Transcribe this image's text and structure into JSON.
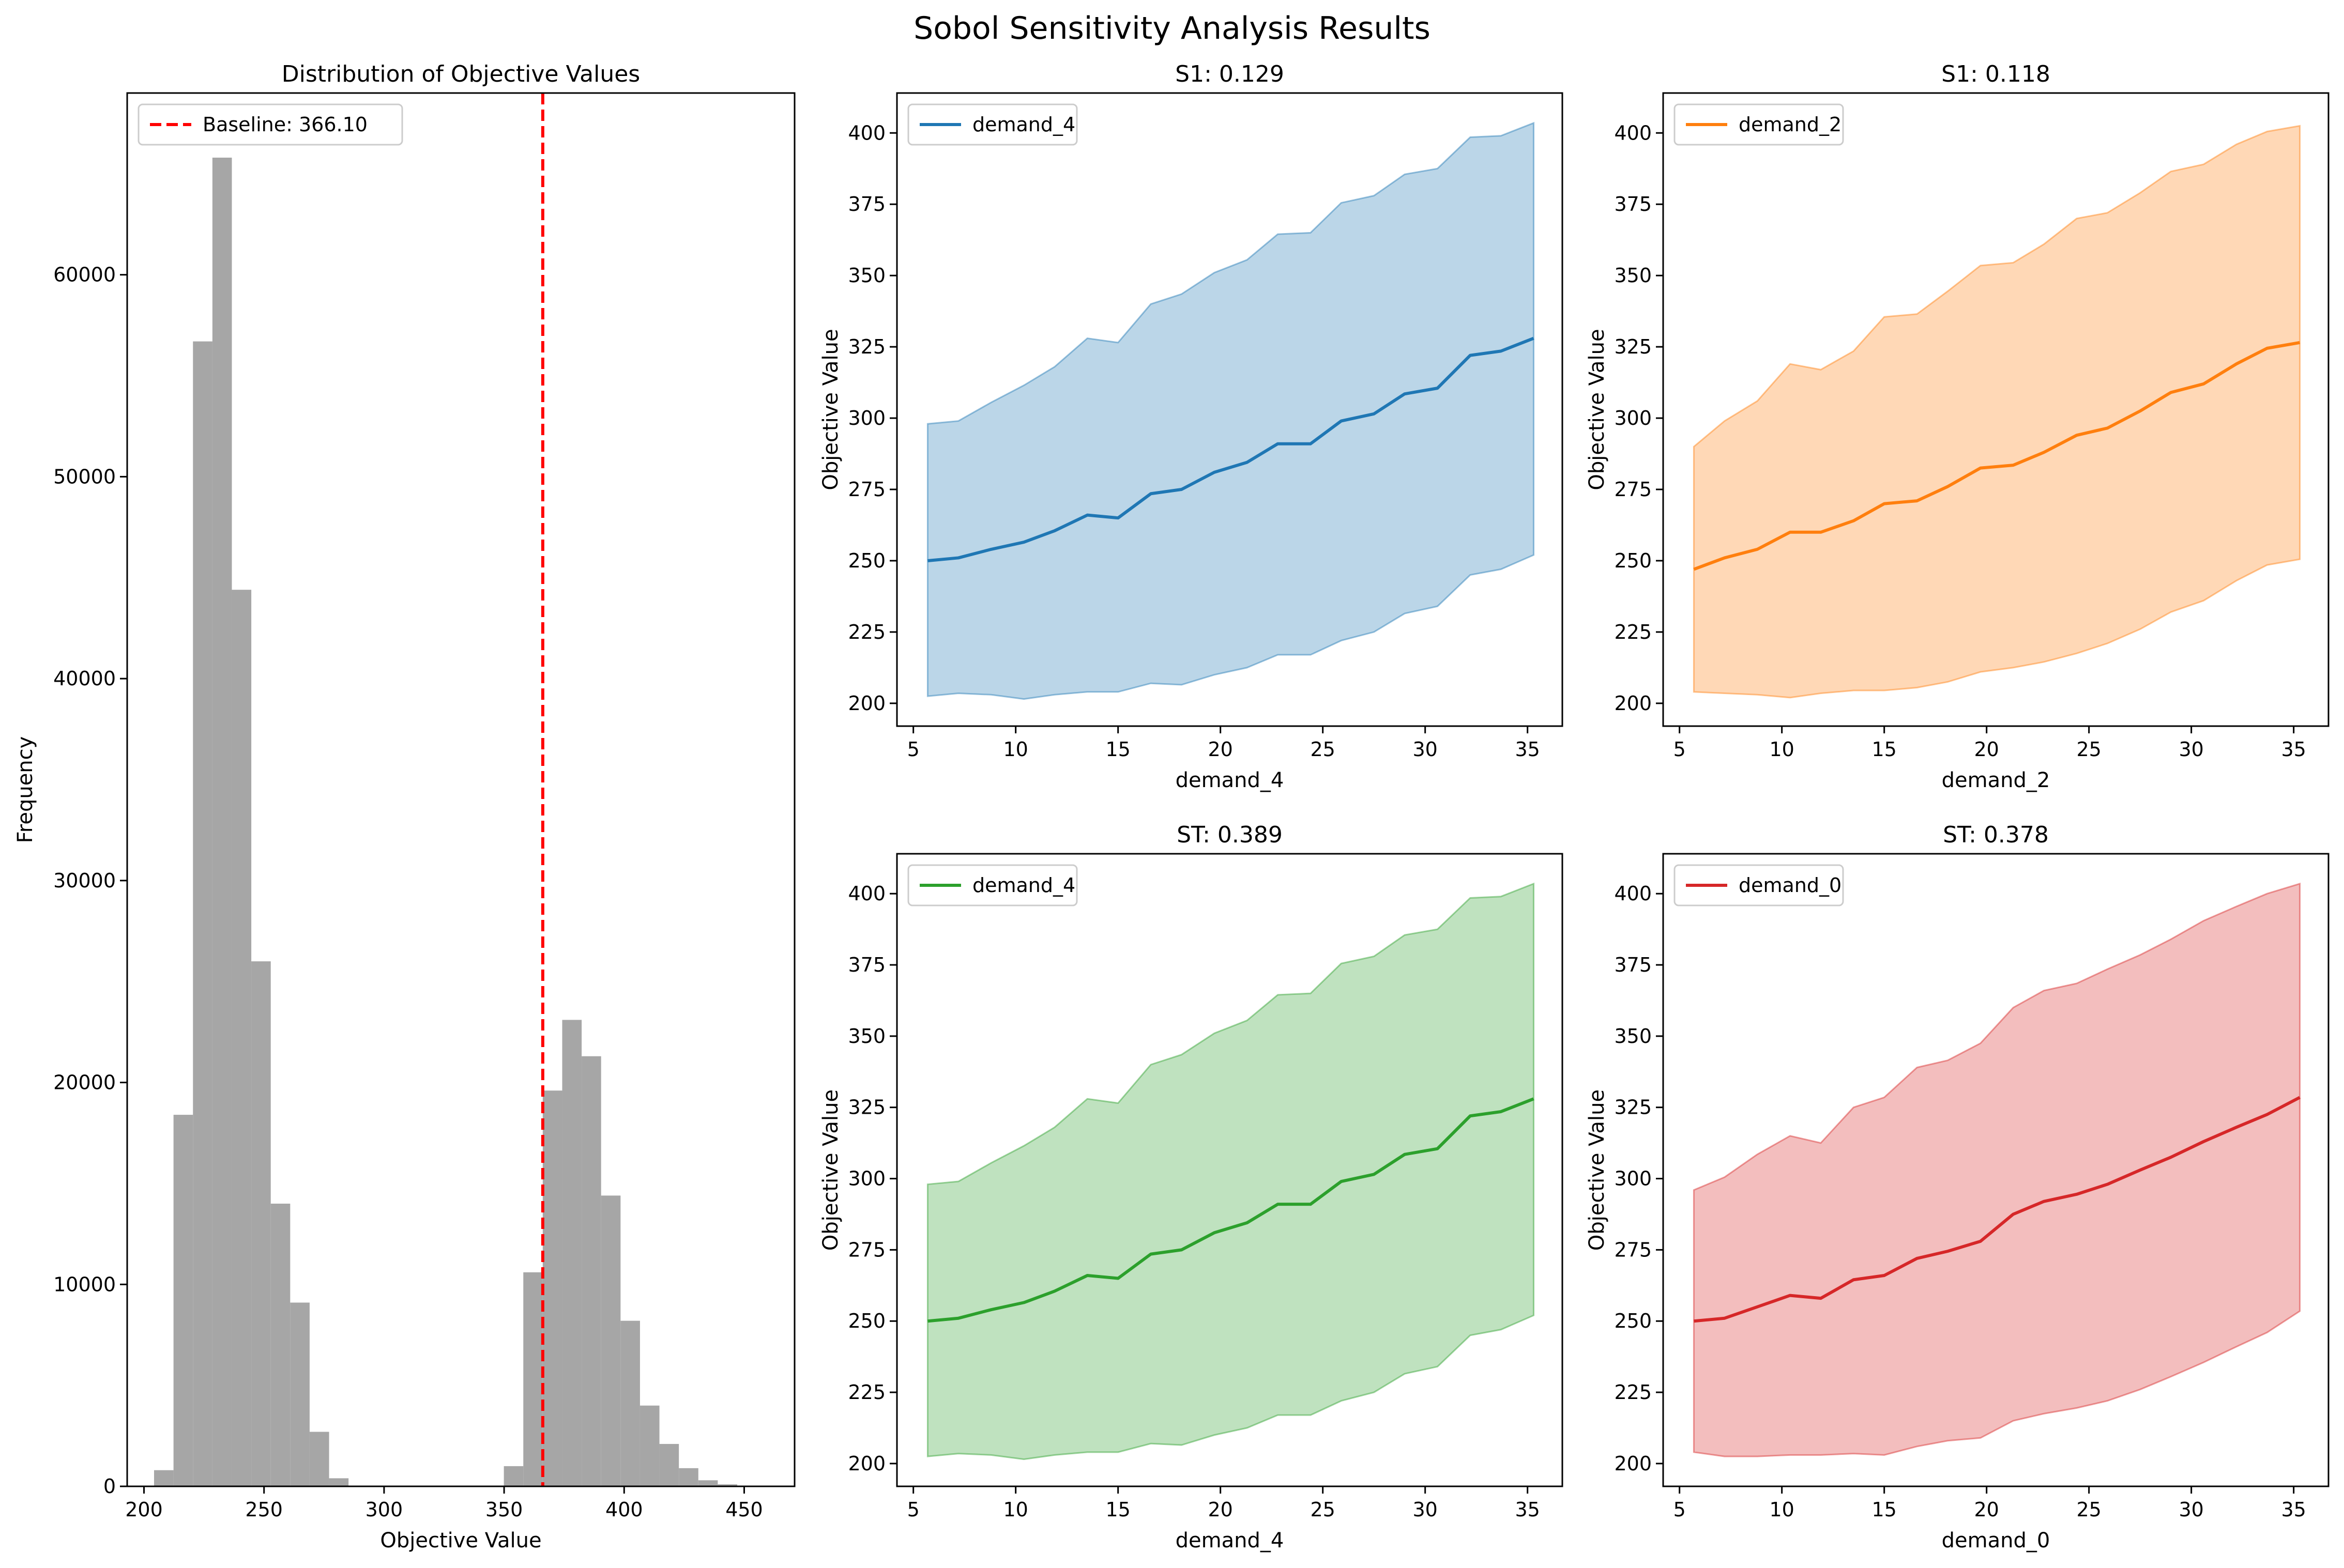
{
  "figure": {
    "title": "Sobol Sensitivity Analysis Results"
  },
  "chart_data": [
    {
      "id": "hist",
      "type": "bar",
      "subtype": "histogram",
      "title": "Distribution of Objective Values",
      "xlabel": "Objective Value",
      "ylabel": "Frequency",
      "xlim": [
        193,
        471
      ],
      "ylim": [
        0,
        69000
      ],
      "xticks": [
        200,
        250,
        300,
        350,
        400,
        450
      ],
      "yticks": [
        0,
        10000,
        20000,
        30000,
        40000,
        50000,
        60000
      ],
      "bin_width": 8.1,
      "bar_color": "#a6a6a6",
      "bins": [
        {
          "x0": 204.2,
          "count": 800
        },
        {
          "x0": 212.3,
          "count": 18400
        },
        {
          "x0": 220.4,
          "count": 56700
        },
        {
          "x0": 228.5,
          "count": 65800
        },
        {
          "x0": 236.6,
          "count": 44400
        },
        {
          "x0": 244.7,
          "count": 26000
        },
        {
          "x0": 252.8,
          "count": 14000
        },
        {
          "x0": 260.9,
          "count": 9100
        },
        {
          "x0": 269.0,
          "count": 2700
        },
        {
          "x0": 277.1,
          "count": 400
        },
        {
          "x0": 285.2,
          "count": 30
        },
        {
          "x0": 349.9,
          "count": 1000
        },
        {
          "x0": 358.0,
          "count": 10600
        },
        {
          "x0": 366.1,
          "count": 19600
        },
        {
          "x0": 374.2,
          "count": 23100
        },
        {
          "x0": 382.3,
          "count": 21300
        },
        {
          "x0": 390.4,
          "count": 14400
        },
        {
          "x0": 398.5,
          "count": 8200
        },
        {
          "x0": 406.6,
          "count": 4000
        },
        {
          "x0": 414.7,
          "count": 2100
        },
        {
          "x0": 422.8,
          "count": 900
        },
        {
          "x0": 430.9,
          "count": 300
        },
        {
          "x0": 439.0,
          "count": 100
        },
        {
          "x0": 447.1,
          "count": 30
        }
      ],
      "baseline": {
        "value": 366.1,
        "label": "Baseline: 366.10",
        "color": "#ff0000"
      },
      "legend": {
        "loc": "upper-left"
      }
    },
    {
      "id": "s1a",
      "type": "line",
      "title": "S1: 0.129",
      "xlabel": "demand_4",
      "ylabel": "Objective Value",
      "xlim": [
        4.2,
        36.7
      ],
      "ylim": [
        192,
        414
      ],
      "xticks": [
        5,
        10,
        15,
        20,
        25,
        30,
        35
      ],
      "yticks": [
        200,
        225,
        250,
        275,
        300,
        325,
        350,
        375,
        400
      ],
      "color": "#1f77b4",
      "band_color": "#1f77b4",
      "band_opacity": 0.3,
      "legend": {
        "loc": "upper-left"
      },
      "x": [
        5.7,
        7.2,
        8.8,
        10.4,
        11.9,
        13.5,
        15.0,
        16.6,
        18.1,
        19.7,
        21.3,
        22.8,
        24.4,
        25.9,
        27.5,
        29.0,
        30.6,
        32.2,
        33.7,
        35.3
      ],
      "series": [
        {
          "name": "demand_4",
          "values": [
            250,
            251,
            254,
            256.5,
            260.5,
            266,
            265,
            273.5,
            275,
            281,
            284.5,
            291,
            291,
            299,
            301.5,
            308.5,
            310.5,
            322,
            323.5,
            328
          ],
          "upper": [
            298,
            299,
            305.5,
            311.5,
            318,
            328,
            326.5,
            340,
            343.5,
            351,
            355.5,
            364.5,
            365,
            375.5,
            378,
            385.5,
            387.5,
            398.5,
            399,
            403.5
          ],
          "lower": [
            202.5,
            203.5,
            203,
            201.5,
            203,
            204,
            204,
            207,
            206.5,
            210,
            212.5,
            217,
            217,
            222,
            225,
            231.5,
            234,
            245,
            247,
            252
          ]
        }
      ]
    },
    {
      "id": "s1b",
      "type": "line",
      "title": "S1: 0.118",
      "xlabel": "demand_2",
      "ylabel": "Objective Value",
      "xlim": [
        4.2,
        36.7
      ],
      "ylim": [
        192,
        414
      ],
      "xticks": [
        5,
        10,
        15,
        20,
        25,
        30,
        35
      ],
      "yticks": [
        200,
        225,
        250,
        275,
        300,
        325,
        350,
        375,
        400
      ],
      "color": "#ff7f0e",
      "band_color": "#ff7f0e",
      "band_opacity": 0.3,
      "legend": {
        "loc": "upper-left"
      },
      "x": [
        5.7,
        7.2,
        8.8,
        10.4,
        11.9,
        13.5,
        15.0,
        16.6,
        18.1,
        19.7,
        21.3,
        22.8,
        24.4,
        25.9,
        27.5,
        29.0,
        30.6,
        32.2,
        33.7,
        35.3
      ],
      "series": [
        {
          "name": "demand_2",
          "values": [
            247,
            251,
            254,
            260,
            260,
            264,
            270,
            271,
            276,
            282.5,
            283.5,
            288,
            294,
            296.5,
            302.5,
            309,
            312,
            319,
            324.5,
            326.5
          ],
          "upper": [
            290,
            299,
            306,
            319,
            317,
            323.5,
            335.5,
            336.5,
            344.5,
            353.5,
            354.5,
            361,
            370,
            372,
            379,
            386.5,
            389,
            396,
            400.5,
            402.5
          ],
          "lower": [
            204,
            203.5,
            203,
            202,
            203.5,
            204.5,
            204.5,
            205.5,
            207.5,
            211,
            212.5,
            214.5,
            217.5,
            221,
            226,
            232,
            236,
            243,
            248.5,
            250.5
          ]
        }
      ]
    },
    {
      "id": "sta",
      "type": "line",
      "title": "ST: 0.389",
      "xlabel": "demand_4",
      "ylabel": "Objective Value",
      "xlim": [
        4.2,
        36.7
      ],
      "ylim": [
        192,
        414
      ],
      "xticks": [
        5,
        10,
        15,
        20,
        25,
        30,
        35
      ],
      "yticks": [
        200,
        225,
        250,
        275,
        300,
        325,
        350,
        375,
        400
      ],
      "color": "#2ca02c",
      "band_color": "#2ca02c",
      "band_opacity": 0.3,
      "legend": {
        "loc": "upper-left"
      },
      "x": [
        5.7,
        7.2,
        8.8,
        10.4,
        11.9,
        13.5,
        15.0,
        16.6,
        18.1,
        19.7,
        21.3,
        22.8,
        24.4,
        25.9,
        27.5,
        29.0,
        30.6,
        32.2,
        33.7,
        35.3
      ],
      "series": [
        {
          "name": "demand_4",
          "values": [
            250,
            251,
            254,
            256.5,
            260.5,
            266,
            265,
            273.5,
            275,
            281,
            284.5,
            291,
            291,
            299,
            301.5,
            308.5,
            310.5,
            322,
            323.5,
            328
          ],
          "upper": [
            298,
            299,
            305.5,
            311.5,
            318,
            328,
            326.5,
            340,
            343.5,
            351,
            355.5,
            364.5,
            365,
            375.5,
            378,
            385.5,
            387.5,
            398.5,
            399,
            403.5
          ],
          "lower": [
            202.5,
            203.5,
            203,
            201.5,
            203,
            204,
            204,
            207,
            206.5,
            210,
            212.5,
            217,
            217,
            222,
            225,
            231.5,
            234,
            245,
            247,
            252
          ]
        }
      ]
    },
    {
      "id": "stb",
      "type": "line",
      "title": "ST: 0.378",
      "xlabel": "demand_0",
      "ylabel": "Objective Value",
      "xlim": [
        4.2,
        36.7
      ],
      "ylim": [
        192,
        414
      ],
      "xticks": [
        5,
        10,
        15,
        20,
        25,
        30,
        35
      ],
      "yticks": [
        200,
        225,
        250,
        275,
        300,
        325,
        350,
        375,
        400
      ],
      "color": "#d62728",
      "band_color": "#d62728",
      "band_opacity": 0.3,
      "legend": {
        "loc": "upper-left"
      },
      "x": [
        5.7,
        7.2,
        8.8,
        10.4,
        11.9,
        13.5,
        15.0,
        16.6,
        18.1,
        19.7,
        21.3,
        22.8,
        24.4,
        25.9,
        27.5,
        29.0,
        30.6,
        32.2,
        33.7,
        35.3
      ],
      "series": [
        {
          "name": "demand_0",
          "values": [
            250,
            251,
            255,
            259,
            258,
            264.5,
            266,
            272,
            274.5,
            278,
            287.5,
            292,
            294.5,
            298,
            303,
            307.5,
            313,
            318,
            322.5,
            328.5
          ],
          "upper": [
            296,
            300.5,
            308.5,
            315,
            312.5,
            325,
            328.5,
            339,
            341.5,
            347.5,
            360,
            366,
            368.5,
            373.5,
            378.5,
            384,
            390.5,
            395.5,
            400,
            403.5
          ],
          "lower": [
            204,
            202.5,
            202.5,
            203,
            203,
            203.5,
            203,
            206,
            208,
            209,
            215,
            217.5,
            219.5,
            222,
            226,
            230.5,
            235.5,
            241,
            246,
            253.5
          ]
        }
      ]
    }
  ]
}
